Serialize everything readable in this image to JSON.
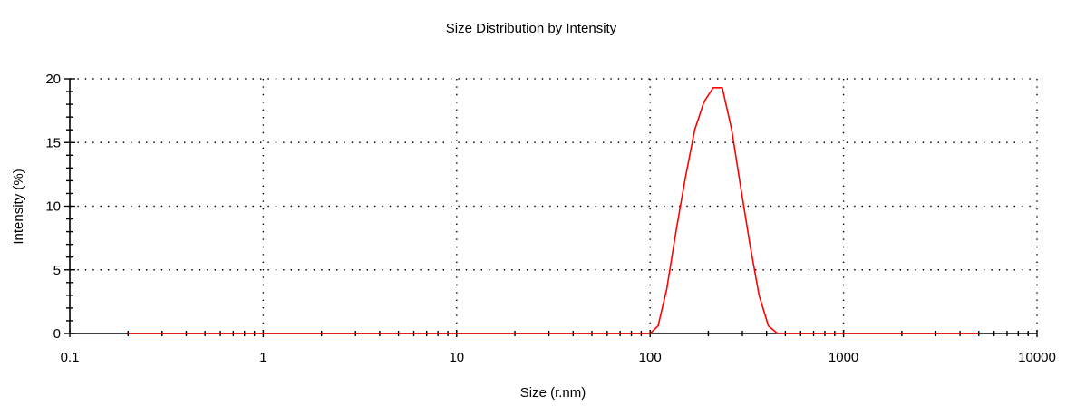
{
  "chart_data": {
    "type": "line",
    "title": "Size Distribution by Intensity",
    "xlabel": "Size (r.nm)",
    "ylabel": "Intensity (%)",
    "x_scale": "log",
    "xlim": [
      0.1,
      10000
    ],
    "ylim": [
      0,
      20
    ],
    "x_ticks": [
      0.1,
      1,
      10,
      100,
      1000,
      10000
    ],
    "x_tick_labels": [
      "0.1",
      "1",
      "10",
      "100",
      "1000",
      "10000"
    ],
    "y_ticks": [
      0,
      5,
      10,
      15,
      20
    ],
    "y_tick_labels": [
      "0",
      "5",
      "10",
      "15",
      "20"
    ],
    "grid": true,
    "legend": "none",
    "series": [
      {
        "color": "#ff0000",
        "x": [
          0.2,
          1,
          10,
          50,
          100,
          110,
          122,
          136,
          152,
          170,
          190,
          212,
          236,
          264,
          294,
          328,
          366,
          409,
          456,
          500,
          1000,
          5000
        ],
        "y": [
          0,
          0,
          0,
          0,
          0,
          0.6,
          3.5,
          8.0,
          12.2,
          16.0,
          18.2,
          19.3,
          19.3,
          16.0,
          11.5,
          7.0,
          3.0,
          0.6,
          0,
          0,
          0,
          0
        ]
      }
    ]
  }
}
